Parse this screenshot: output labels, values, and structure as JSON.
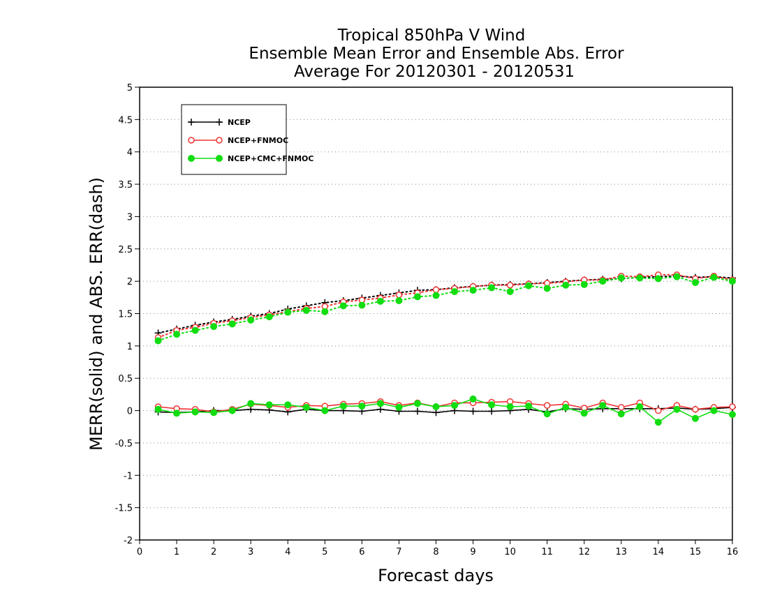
{
  "chart_data": {
    "type": "line",
    "title_lines": [
      "Tropical 850hPa V Wind",
      "Ensemble Mean Error and Ensemble Abs. Error",
      "Average For 20120301 - 20120531"
    ],
    "xlabel": "Forecast days",
    "ylabel": "MERR(solid) and ABS. ERR(dash)",
    "xlim": [
      0,
      16
    ],
    "ylim": [
      -2,
      5
    ],
    "xticks": [
      "0",
      "1",
      "2",
      "3",
      "4",
      "5",
      "6",
      "7",
      "8",
      "9",
      "10",
      "11",
      "12",
      "13",
      "14",
      "15",
      "16"
    ],
    "yticks": [
      "5",
      "4.5",
      "4",
      "3.5",
      "3",
      "2.5",
      "2",
      "1.5",
      "1",
      "0.5",
      "0",
      "-0.5",
      "-1",
      "-1.5",
      "-2"
    ],
    "ytick_values": [
      5,
      4.5,
      4,
      3.5,
      3,
      2.5,
      2,
      1.5,
      1,
      0.5,
      0,
      -0.5,
      -1,
      -1.5,
      -2
    ],
    "grid": "horizontal-dotted",
    "legend_position": "top-left",
    "x": [
      0.5,
      1,
      1.5,
      2,
      2.5,
      3,
      3.5,
      4,
      4.5,
      5,
      5.5,
      6,
      6.5,
      7,
      7.5,
      8,
      8.5,
      9,
      9.5,
      10,
      10.5,
      11,
      11.5,
      12,
      12.5,
      13,
      13.5,
      14,
      14.5,
      15,
      15.5,
      16
    ],
    "series": [
      {
        "name": "NCEP",
        "color": "#000000",
        "marker": "plus",
        "mean_error": [
          -0.02,
          -0.03,
          -0.02,
          0.0,
          0.0,
          0.02,
          0.01,
          -0.02,
          0.02,
          0.0,
          0.0,
          -0.01,
          0.02,
          -0.01,
          -0.01,
          -0.03,
          0.0,
          -0.01,
          -0.01,
          0.0,
          0.02,
          -0.02,
          0.03,
          0.02,
          0.03,
          0.03,
          0.03,
          0.03,
          0.04,
          0.02,
          0.03,
          0.05
        ],
        "abs_error": [
          1.2,
          1.26,
          1.32,
          1.37,
          1.41,
          1.46,
          1.5,
          1.57,
          1.62,
          1.67,
          1.7,
          1.74,
          1.78,
          1.82,
          1.86,
          1.87,
          1.9,
          1.92,
          1.94,
          1.95,
          1.96,
          1.98,
          2.0,
          2.02,
          2.03,
          2.04,
          2.06,
          2.07,
          2.08,
          2.06,
          2.07,
          2.05
        ]
      },
      {
        "name": "NCEP+FNMOC",
        "color": "#ee3333",
        "marker": "circle-open",
        "mean_error": [
          0.06,
          0.03,
          0.02,
          -0.02,
          0.02,
          0.1,
          0.08,
          0.05,
          0.08,
          0.07,
          0.1,
          0.11,
          0.14,
          0.08,
          0.12,
          0.06,
          0.12,
          0.12,
          0.13,
          0.14,
          0.11,
          0.08,
          0.1,
          0.04,
          0.12,
          0.05,
          0.12,
          0.0,
          0.08,
          0.02,
          0.05,
          0.06
        ],
        "abs_error": [
          1.13,
          1.24,
          1.29,
          1.35,
          1.39,
          1.44,
          1.48,
          1.53,
          1.58,
          1.61,
          1.68,
          1.71,
          1.74,
          1.79,
          1.82,
          1.87,
          1.89,
          1.92,
          1.94,
          1.94,
          1.96,
          1.97,
          1.99,
          2.02,
          2.02,
          2.08,
          2.07,
          2.1,
          2.1,
          2.04,
          2.08,
          2.02
        ]
      },
      {
        "name": "NCEP+CMC+FNMOC",
        "color": "#11dd11",
        "marker": "circle-filled",
        "mean_error": [
          0.02,
          -0.04,
          -0.02,
          -0.03,
          0.0,
          0.11,
          0.09,
          0.09,
          0.05,
          0.0,
          0.07,
          0.07,
          0.11,
          0.05,
          0.11,
          0.06,
          0.08,
          0.18,
          0.09,
          0.06,
          0.07,
          -0.05,
          0.05,
          -0.04,
          0.08,
          -0.05,
          0.06,
          -0.18,
          0.02,
          -0.12,
          0.0,
          -0.06
        ],
        "abs_error": [
          1.08,
          1.18,
          1.24,
          1.3,
          1.34,
          1.4,
          1.45,
          1.52,
          1.55,
          1.53,
          1.62,
          1.63,
          1.69,
          1.7,
          1.76,
          1.78,
          1.84,
          1.86,
          1.9,
          1.84,
          1.93,
          1.89,
          1.94,
          1.95,
          2.0,
          2.05,
          2.05,
          2.04,
          2.07,
          1.98,
          2.06,
          2.0
        ]
      }
    ]
  }
}
